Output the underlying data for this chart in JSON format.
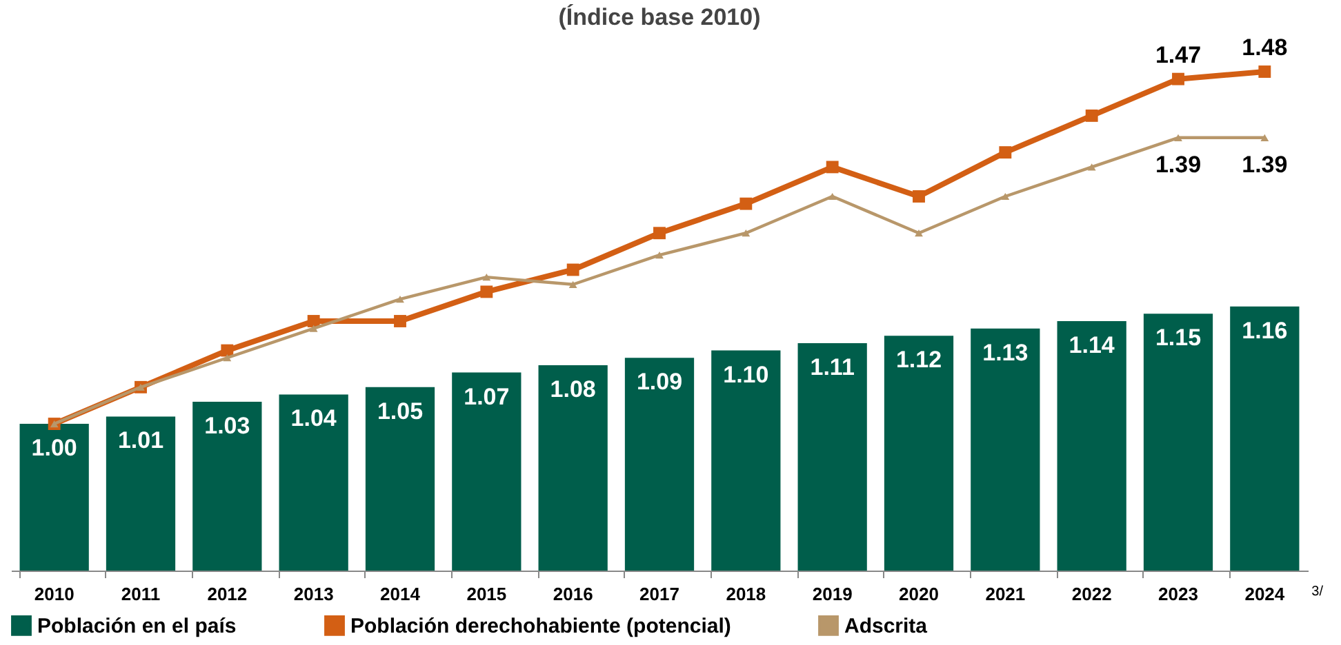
{
  "chart_data": {
    "type": "bar",
    "title": "(Índice base 2010)",
    "categories": [
      "2010",
      "2011",
      "2012",
      "2013",
      "2014",
      "2015",
      "2016",
      "2017",
      "2018",
      "2019",
      "2020",
      "2021",
      "2022",
      "2023",
      "2024"
    ],
    "series": [
      {
        "name": "Población en el país",
        "color": "#005e4b",
        "values": [
          1.0,
          1.01,
          1.03,
          1.04,
          1.05,
          1.07,
          1.08,
          1.09,
          1.1,
          1.11,
          1.12,
          1.13,
          1.14,
          1.15,
          1.16
        ],
        "value_labels": [
          "1.00",
          "1.01",
          "1.03",
          "1.04",
          "1.05",
          "1.07",
          "1.08",
          "1.09",
          "1.10",
          "1.11",
          "1.12",
          "1.13",
          "1.14",
          "1.15",
          "1.16"
        ]
      },
      {
        "name": "Población derechohabiente (potencial)",
        "type": "line",
        "color": "#d35f14",
        "marker": "square",
        "values": [
          1.0,
          1.05,
          1.1,
          1.14,
          1.14,
          1.18,
          1.21,
          1.26,
          1.3,
          1.35,
          1.31,
          1.37,
          1.42,
          1.47,
          1.48
        ],
        "value_labels": [
          null,
          null,
          null,
          null,
          null,
          null,
          null,
          null,
          null,
          null,
          null,
          null,
          null,
          "1.47",
          "1.48"
        ]
      },
      {
        "name": "Adscrita",
        "type": "line",
        "color": "#b8976a",
        "marker": "triangle",
        "values": [
          1.0,
          1.05,
          1.09,
          1.13,
          1.17,
          1.2,
          1.19,
          1.23,
          1.26,
          1.31,
          1.26,
          1.31,
          1.35,
          1.39,
          1.39
        ],
        "value_labels": [
          null,
          null,
          null,
          null,
          null,
          null,
          null,
          null,
          null,
          null,
          null,
          null,
          null,
          "1.39",
          "1.39"
        ]
      }
    ],
    "ylim": [
      0.8,
      1.48
    ],
    "tick_labels": "x",
    "grid": false,
    "legend": "bottom",
    "annotations": [
      "3/"
    ]
  }
}
